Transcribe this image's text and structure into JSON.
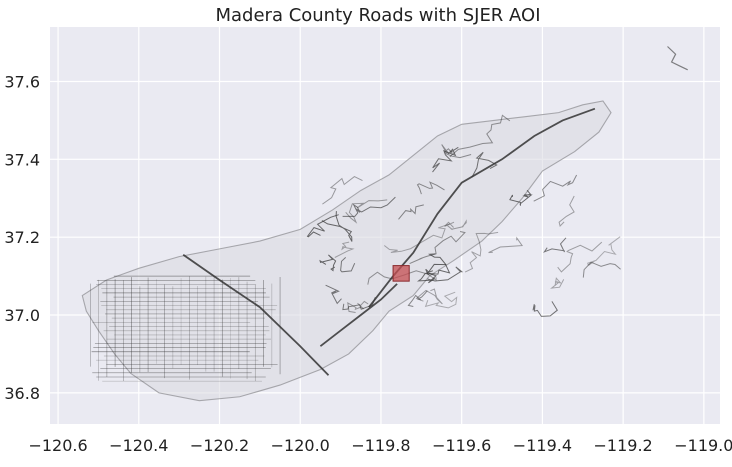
{
  "chart_data": {
    "type": "map",
    "title": "Madera County Roads with SJER AOI",
    "xlim": [
      -120.62,
      -118.96
    ],
    "ylim": [
      36.72,
      37.74
    ],
    "x_ticks": [
      -120.6,
      -120.4,
      -120.2,
      -120.0,
      -119.8,
      -119.6,
      -119.4,
      -119.2,
      -119.0
    ],
    "x_tick_labels": [
      "−120.6",
      "−120.4",
      "−120.2",
      "−120.0",
      "−119.8",
      "−119.6",
      "−119.4",
      "−119.2",
      "−119.0"
    ],
    "y_ticks": [
      36.8,
      37.0,
      37.2,
      37.4,
      37.6
    ],
    "y_tick_labels": [
      "36.8",
      "37.0",
      "37.2",
      "37.4",
      "37.6"
    ],
    "grid": true,
    "colors": {
      "background": "#eaeaf2",
      "grid": "#ffffff",
      "roads": "#333333",
      "aoi_fill": "#c44e52",
      "aoi_edge": "#8b2a2d"
    },
    "aoi": {
      "name": "SJER",
      "x_range": [
        -119.77,
        -119.73
      ],
      "y_range": [
        37.087,
        37.127
      ]
    },
    "main_roads": [
      {
        "name": "diagonal-highway",
        "points": [
          [
            -120.29,
            37.155
          ],
          [
            -120.2,
            37.09
          ],
          [
            -120.1,
            37.02
          ],
          [
            -120.0,
            36.92
          ],
          [
            -119.93,
            36.845
          ]
        ]
      },
      {
        "name": "northeast-corridor",
        "points": [
          [
            -119.83,
            37.02
          ],
          [
            -119.77,
            37.1
          ],
          [
            -119.72,
            37.16
          ],
          [
            -119.66,
            37.26
          ],
          [
            -119.6,
            37.34
          ],
          [
            -119.5,
            37.4
          ],
          [
            -119.42,
            37.46
          ],
          [
            -119.35,
            37.5
          ],
          [
            -119.27,
            37.53
          ]
        ]
      },
      {
        "name": "southern-arc",
        "points": [
          [
            -119.95,
            36.92
          ],
          [
            -119.9,
            36.96
          ],
          [
            -119.85,
            37.0
          ],
          [
            -119.8,
            37.04
          ],
          [
            -119.76,
            37.08
          ]
        ]
      }
    ],
    "county_outline": [
      [
        -120.54,
        37.05
      ],
      [
        -120.48,
        37.09
      ],
      [
        -120.4,
        37.12
      ],
      [
        -120.3,
        37.15
      ],
      [
        -120.2,
        37.17
      ],
      [
        -120.1,
        37.19
      ],
      [
        -120.0,
        37.22
      ],
      [
        -119.92,
        37.27
      ],
      [
        -119.85,
        37.32
      ],
      [
        -119.78,
        37.36
      ],
      [
        -119.72,
        37.41
      ],
      [
        -119.66,
        37.46
      ],
      [
        -119.6,
        37.49
      ],
      [
        -119.52,
        37.5
      ],
      [
        -119.44,
        37.51
      ],
      [
        -119.36,
        37.52
      ],
      [
        -119.3,
        37.54
      ],
      [
        -119.25,
        37.55
      ],
      [
        -119.23,
        37.52
      ],
      [
        -119.26,
        37.47
      ],
      [
        -119.32,
        37.42
      ],
      [
        -119.4,
        37.37
      ],
      [
        -119.45,
        37.3
      ],
      [
        -119.5,
        37.24
      ],
      [
        -119.55,
        37.19
      ],
      [
        -119.62,
        37.14
      ],
      [
        -119.68,
        37.1
      ],
      [
        -119.72,
        37.05
      ],
      [
        -119.78,
        37.01
      ],
      [
        -119.82,
        36.96
      ],
      [
        -119.88,
        36.9
      ],
      [
        -119.95,
        36.86
      ],
      [
        -120.05,
        36.82
      ],
      [
        -120.15,
        36.79
      ],
      [
        -120.25,
        36.78
      ],
      [
        -120.35,
        36.8
      ],
      [
        -120.42,
        36.85
      ],
      [
        -120.46,
        36.9
      ],
      [
        -120.5,
        36.96
      ],
      [
        -120.53,
        37.01
      ]
    ],
    "isolated_segment": [
      [
        -119.09,
        37.69
      ],
      [
        -119.07,
        37.67
      ],
      [
        -119.08,
        37.65
      ],
      [
        -119.06,
        37.64
      ],
      [
        -119.04,
        37.63
      ]
    ]
  }
}
